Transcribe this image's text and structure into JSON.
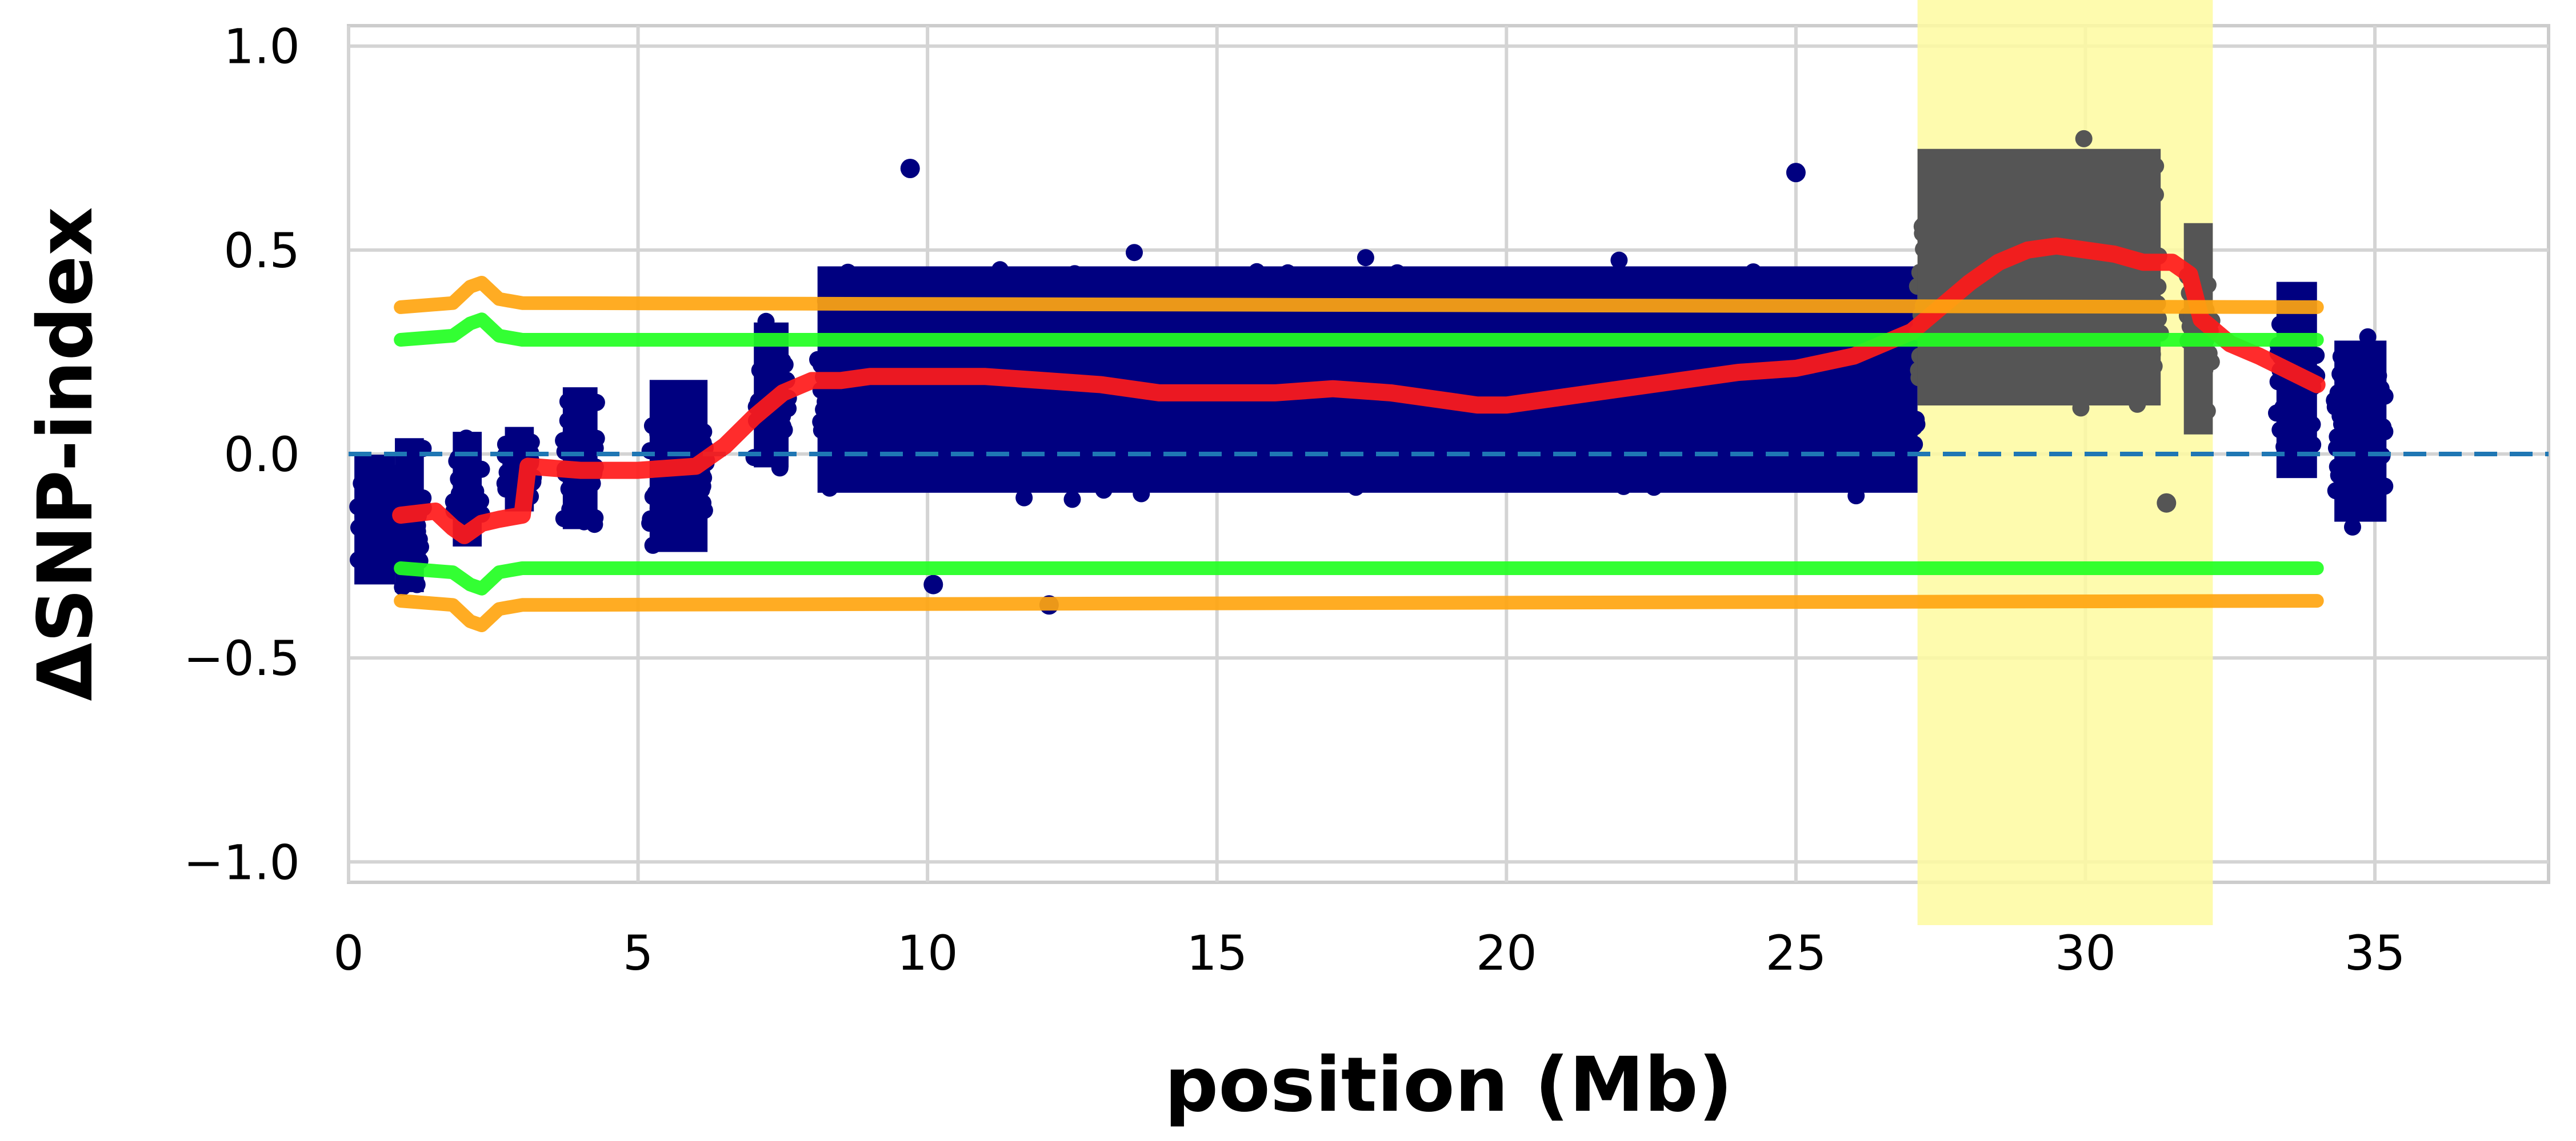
{
  "chart_data": {
    "type": "scatter",
    "xlabel": "position (Mb)",
    "ylabel": "ΔSNP-index",
    "xlim": [
      0,
      38
    ],
    "ylim": [
      -1.05,
      1.05
    ],
    "xticks": [
      0,
      5,
      10,
      15,
      20,
      25,
      30,
      35
    ],
    "xtick_labels": [
      "0",
      "5",
      "10",
      "15",
      "20",
      "25",
      "30",
      "35"
    ],
    "yticks": [
      -1.0,
      -0.5,
      0.0,
      0.5,
      1.0
    ],
    "ytick_labels": [
      "−1.0",
      "−0.5",
      "0.0",
      "0.5",
      "1.0"
    ],
    "grid": true,
    "highlight_region": {
      "x_start": 27.1,
      "x_end": 32.2,
      "color": "#fefaa0"
    },
    "zero_line": {
      "y": 0.0,
      "color": "#1f77b4",
      "style": "dashed"
    },
    "points": {
      "color": "#000080",
      "highlight_color": "#555555",
      "segments": [
        {
          "x_start": 0.1,
          "x_end": 0.8,
          "y_min": -0.38,
          "y_max": 0.05
        },
        {
          "x_start": 0.8,
          "x_end": 1.3,
          "y_min": -0.41,
          "y_max": 0.1
        },
        {
          "x_start": 1.8,
          "x_end": 2.3,
          "y_min": -0.28,
          "y_max": 0.1
        },
        {
          "x_start": 2.7,
          "x_end": 3.2,
          "y_min": -0.18,
          "y_max": 0.1
        },
        {
          "x_start": 3.7,
          "x_end": 4.3,
          "y_min": -0.25,
          "y_max": 0.22
        },
        {
          "x_start": 5.2,
          "x_end": 6.2,
          "y_min": -0.32,
          "y_max": 0.25
        },
        {
          "x_start": 7.0,
          "x_end": 7.6,
          "y_min": -0.1,
          "y_max": 0.38
        },
        {
          "x_start": 8.1,
          "x_end": 27.1,
          "y_min": -0.2,
          "y_max": 0.55
        },
        {
          "x_start": 27.1,
          "x_end": 31.3,
          "y_min": 0.0,
          "y_max": 0.85
        },
        {
          "x_start": 31.7,
          "x_end": 32.2,
          "y_min": -0.05,
          "y_max": 0.65
        },
        {
          "x_start": 33.3,
          "x_end": 34.0,
          "y_min": -0.15,
          "y_max": 0.5
        },
        {
          "x_start": 34.3,
          "x_end": 35.2,
          "y_min": -0.25,
          "y_max": 0.35
        }
      ],
      "outliers": [
        {
          "x": 9.7,
          "y": 0.7
        },
        {
          "x": 25.0,
          "y": 0.69
        },
        {
          "x": 12.1,
          "y": -0.37
        },
        {
          "x": 10.1,
          "y": -0.32
        },
        {
          "x": 31.4,
          "y": -0.12
        }
      ]
    },
    "series": [
      {
        "color": "#ff1a1a",
        "x": [
          0.9,
          1.5,
          1.8,
          2.0,
          2.3,
          2.6,
          3.0,
          3.1,
          4.0,
          5.0,
          6.0,
          6.5,
          7.0,
          7.5,
          8.0,
          8.5,
          9.0,
          10.0,
          11.0,
          12.0,
          13.0,
          14.0,
          15.0,
          16.0,
          17.0,
          18.0,
          19.0,
          19.5,
          20.0,
          21.0,
          22.0,
          23.0,
          24.0,
          25.0,
          26.0,
          26.5,
          27.0,
          27.5,
          28.0,
          28.5,
          29.0,
          29.5,
          30.0,
          30.5,
          31.0,
          31.5,
          31.8,
          32.0,
          32.5,
          33.0,
          34.0
        ],
        "y": [
          -0.15,
          -0.14,
          -0.18,
          -0.2,
          -0.17,
          -0.16,
          -0.15,
          -0.03,
          -0.04,
          -0.04,
          -0.03,
          0.02,
          0.09,
          0.15,
          0.18,
          0.18,
          0.19,
          0.19,
          0.19,
          0.18,
          0.17,
          0.15,
          0.15,
          0.15,
          0.16,
          0.15,
          0.13,
          0.12,
          0.12,
          0.14,
          0.16,
          0.18,
          0.2,
          0.21,
          0.24,
          0.27,
          0.3,
          0.36,
          0.42,
          0.47,
          0.5,
          0.51,
          0.5,
          0.49,
          0.47,
          0.47,
          0.44,
          0.33,
          0.27,
          0.24,
          0.17
        ]
      },
      {
        "color": "#ffa510",
        "x": [
          0.9,
          1.8,
          2.1,
          2.3,
          2.6,
          3.0,
          34.0
        ],
        "y": [
          0.36,
          0.37,
          0.41,
          0.42,
          0.38,
          0.37,
          0.36
        ]
      },
      {
        "color": "#22ff22",
        "x": [
          0.9,
          1.8,
          2.1,
          2.3,
          2.6,
          3.0,
          34.0
        ],
        "y": [
          0.28,
          0.29,
          0.32,
          0.33,
          0.29,
          0.28,
          0.28
        ]
      },
      {
        "color": "#22ff22",
        "x": [
          0.9,
          1.8,
          2.1,
          2.3,
          2.6,
          3.0,
          34.0
        ],
        "y": [
          -0.28,
          -0.29,
          -0.32,
          -0.33,
          -0.29,
          -0.28,
          -0.28
        ]
      },
      {
        "color": "#ffa510",
        "x": [
          0.9,
          1.8,
          2.1,
          2.3,
          2.6,
          3.0,
          34.0
        ],
        "y": [
          -0.36,
          -0.37,
          -0.41,
          -0.42,
          -0.38,
          -0.37,
          -0.36
        ]
      }
    ]
  }
}
